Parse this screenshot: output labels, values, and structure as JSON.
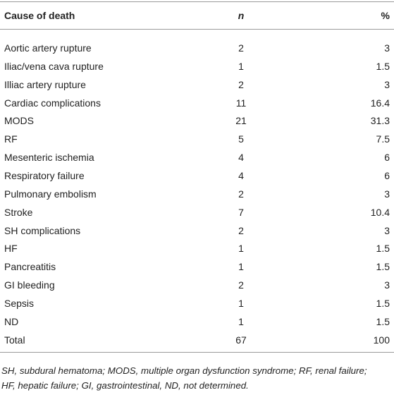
{
  "table": {
    "header": [
      "Cause of death",
      "n",
      "%"
    ],
    "rows": [
      [
        "Aortic artery rupture",
        2,
        3
      ],
      [
        "Iliac/vena cava rupture",
        1,
        1.5
      ],
      [
        "Illiac artery rupture",
        2,
        3
      ],
      [
        "Cardiac complications",
        11,
        16.4
      ],
      [
        "MODS",
        21,
        31.3
      ],
      [
        "RF",
        5,
        7.5
      ],
      [
        "Mesenteric ischemia",
        4,
        6
      ],
      [
        "Respiratory failure",
        4,
        6
      ],
      [
        "Pulmonary embolism",
        2,
        3
      ],
      [
        "Stroke",
        7,
        10.4
      ],
      [
        "SH complications",
        2,
        3
      ],
      [
        "HF",
        1,
        1.5
      ],
      [
        "Pancreatitis",
        1,
        1.5
      ],
      [
        "GI bleeding",
        2,
        3
      ],
      [
        "Sepsis",
        1,
        1.5
      ],
      [
        "ND",
        1,
        1.5
      ],
      [
        "Total",
        67,
        100
      ]
    ],
    "footnote": [
      "SH, subdural hematoma; MODS, multiple organ dysfunction syndrome; RF, renal failure;",
      "HF, hepatic failure; GI, gastrointestinal, ND, not determined."
    ]
  }
}
